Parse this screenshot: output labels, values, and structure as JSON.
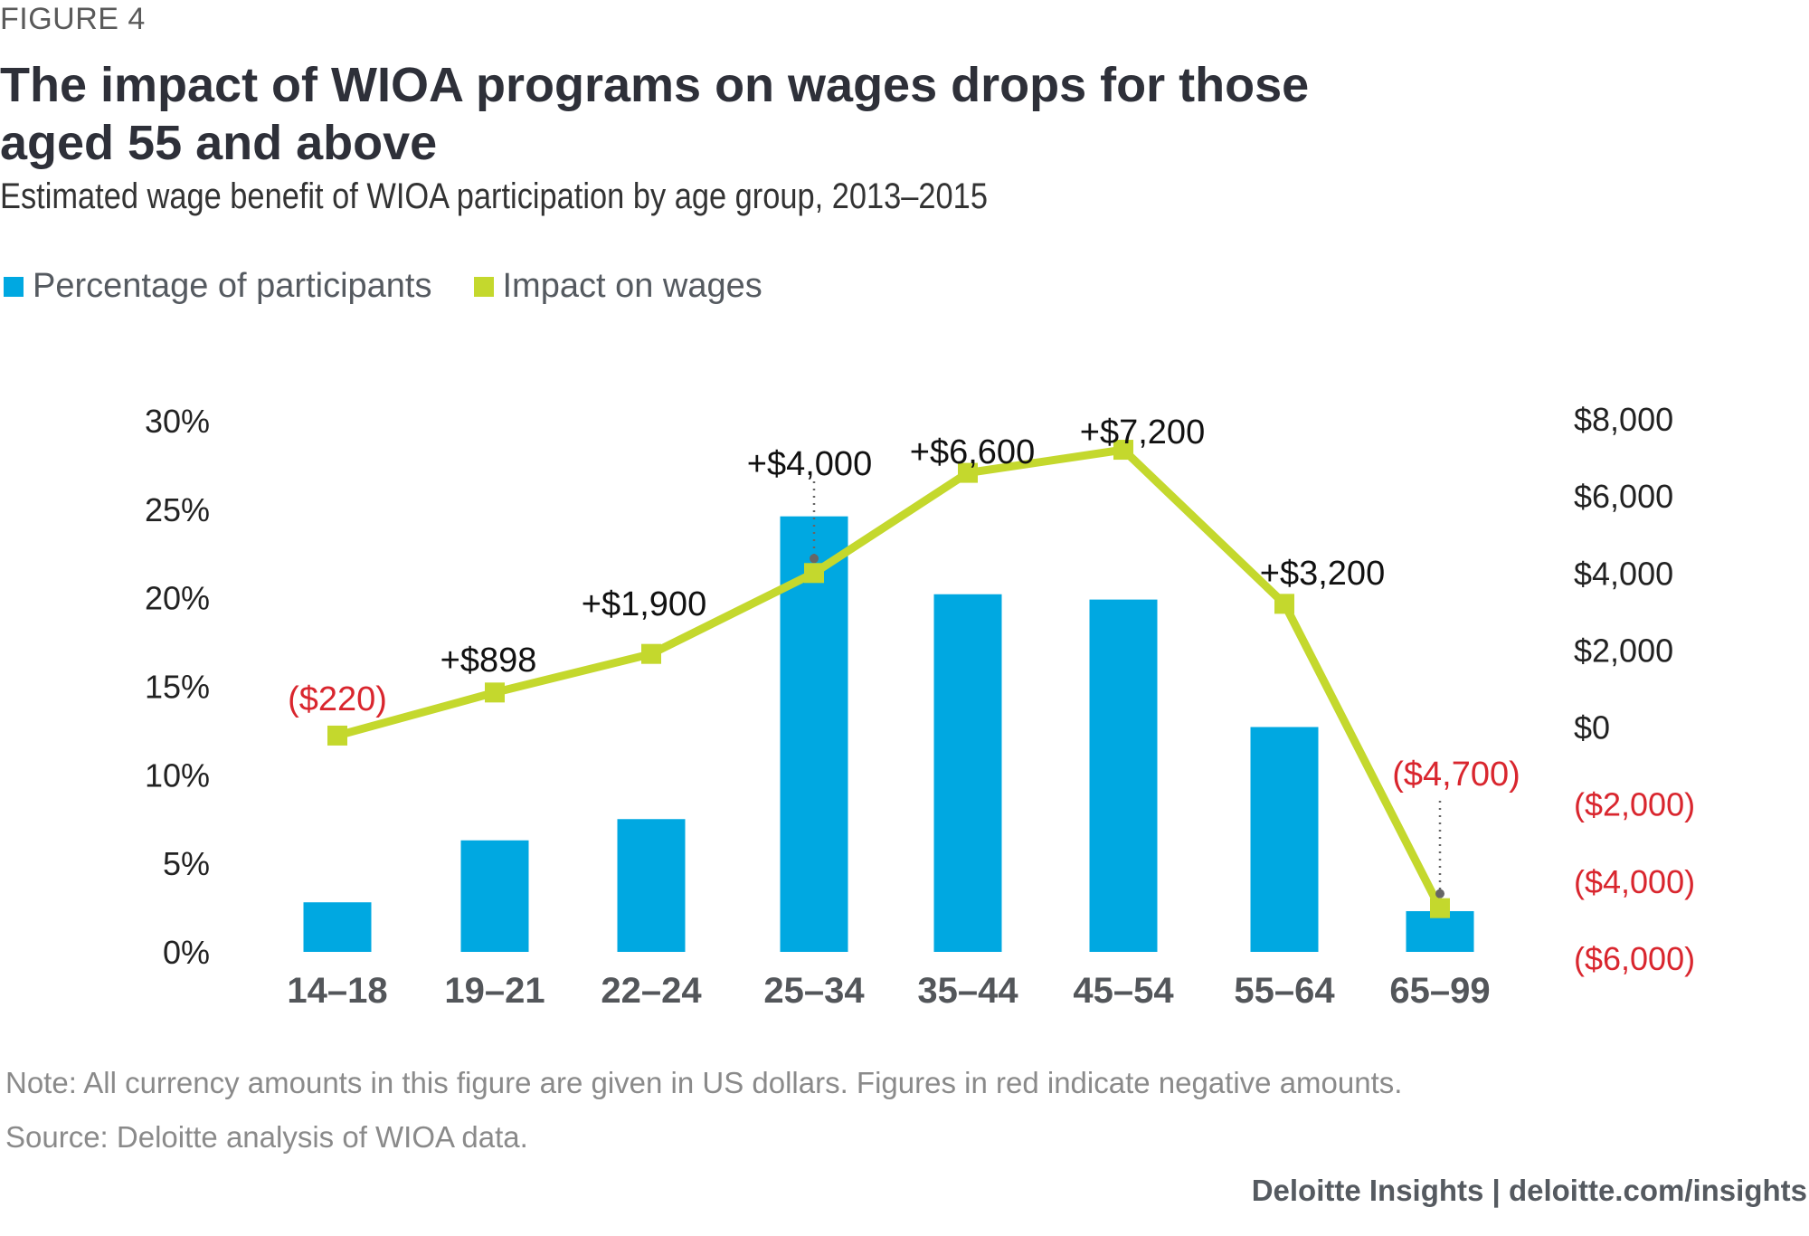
{
  "figure_label": "FIGURE 4",
  "title": "The impact of WIOA programs on wages drops for those aged 55 and above",
  "subtitle": "Estimated wage benefit of WIOA participation by age group, 2013–2015",
  "legend": [
    {
      "label": "Percentage of participants",
      "color": "#00a8e1"
    },
    {
      "label": "Impact on wages",
      "color": "#c4d82d"
    }
  ],
  "note": "Note: All currency amounts in this figure are given in US dollars. Figures in red indicate negative amounts.",
  "source": "Source: Deloitte analysis of WIOA data.",
  "brand": "Deloitte Insights | deloitte.com/insights",
  "colors": {
    "bar": "#00a8e1",
    "line": "#c4d82d",
    "negative": "#d9262e",
    "text": "#222222",
    "category": "#53565a"
  },
  "chart_data": {
    "type": "bar",
    "title": "The impact of WIOA programs on wages drops for those aged 55 and above",
    "subtitle": "Estimated wage benefit of WIOA participation by age group, 2013–2015",
    "categories": [
      "14–18",
      "19–21",
      "22–24",
      "25–34",
      "35–44",
      "45–54",
      "55–64",
      "65–99"
    ],
    "series": [
      {
        "name": "Percentage of participants",
        "type": "bar",
        "axis": "left",
        "values": [
          2.8,
          6.3,
          7.5,
          24.6,
          20.2,
          19.9,
          12.7,
          2.3
        ]
      },
      {
        "name": "Impact on wages",
        "type": "line",
        "axis": "right",
        "values": [
          -220,
          898,
          1900,
          4000,
          6600,
          7200,
          3200,
          -4700
        ],
        "labels": [
          "($220)",
          "+$898",
          "+$1,900",
          "+$4,000",
          "+$6,600",
          "+$7,200",
          "+$3,200",
          "($4,700)"
        ]
      }
    ],
    "left_axis": {
      "ylim": [
        0,
        30
      ],
      "ticks": [
        0,
        5,
        10,
        15,
        20,
        25,
        30
      ],
      "tick_labels": [
        "0%",
        "5%",
        "10%",
        "15%",
        "20%",
        "25%",
        "30%"
      ]
    },
    "right_axis": {
      "ylim": [
        -6000,
        8000
      ],
      "ticks": [
        8000,
        6000,
        4000,
        2000,
        0,
        -2000,
        -4000,
        -6000
      ],
      "tick_labels": [
        "$8,000",
        "$6,000",
        "$4,000",
        "$2,000",
        "$0",
        "($2,000)",
        "($4,000)",
        "($6,000)"
      ]
    },
    "grid": false,
    "legend_position": "top-left"
  }
}
